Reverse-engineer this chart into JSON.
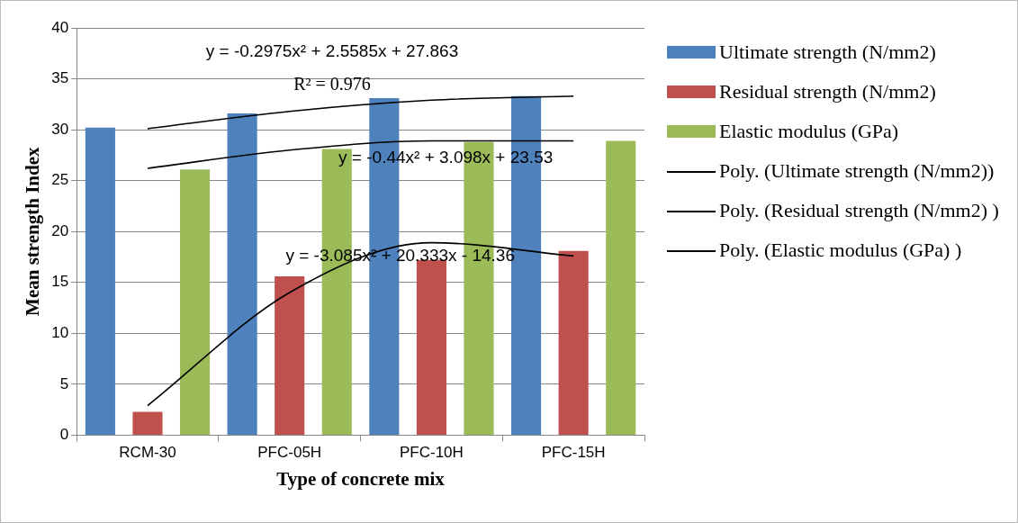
{
  "chart_data": {
    "type": "bar",
    "xlabel": "Type of concrete mix",
    "ylabel": "Mean strength Index",
    "categories": [
      "RCM-30",
      "PFC-05H",
      "PFC-10H",
      "PFC-15H"
    ],
    "series": [
      {
        "name": "Ultimate  strength (N/mm2)",
        "color": "#4f81bd",
        "values": [
          30.2,
          31.6,
          33.1,
          33.3
        ]
      },
      {
        "name": "Residual strength (N/mm2)",
        "color": "#c0504d",
        "values": [
          2.3,
          15.6,
          17.2,
          18.1
        ]
      },
      {
        "name": "Elastic modulus (GPa)",
        "color": "#9bbb59",
        "values": [
          26.1,
          28.1,
          28.8,
          28.9
        ]
      },
      {
        "name": "Poly. (Ultimate  strength (N/mm2))",
        "type": "line",
        "color": "#000000",
        "x": [
          "RCM-30",
          "PFC-05H",
          "PFC-10H",
          "PFC-15H"
        ],
        "values": [
          30.1,
          31.8,
          32.9,
          33.3
        ]
      },
      {
        "name": "Poly. (Residual strength (N/mm2) )",
        "type": "line",
        "color": "#000000",
        "x": [
          "RCM-30",
          "PFC-05H",
          "PFC-10H",
          "PFC-15H"
        ],
        "values": [
          2.9,
          14.0,
          18.9,
          17.6
        ]
      },
      {
        "name": "Poly. (Elastic modulus (GPa) )",
        "type": "line",
        "color": "#000000",
        "x": [
          "RCM-30",
          "PFC-05H",
          "PFC-10H",
          "PFC-15H"
        ],
        "values": [
          26.2,
          28.0,
          28.9,
          28.9
        ]
      }
    ],
    "annotations": [
      "y = -0.2975x² + 2.5585x + 27.863",
      "R² = 0.976",
      "y = -0.44x² + 3.098x + 23.53",
      "y = -3.085x² + 20.333x - 14.36"
    ],
    "ylim": [
      0,
      40
    ],
    "yticks": [
      0,
      5,
      10,
      15,
      20,
      25,
      30,
      35,
      40
    ],
    "grid": "y",
    "legend": "right",
    "marker": "none",
    "line_style": "solid"
  }
}
